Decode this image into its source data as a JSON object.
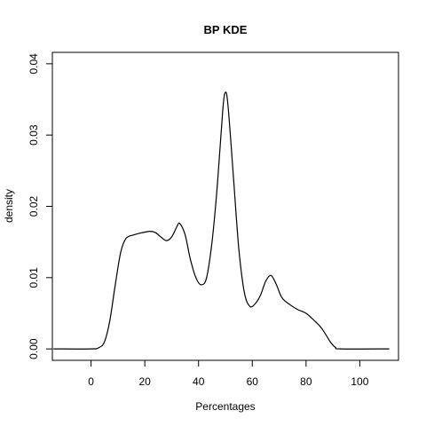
{
  "chart_data": {
    "type": "line",
    "title": "BP  KDE",
    "xlabel": "Percentages",
    "ylabel": "density",
    "xlim": [
      -14.4,
      114.4
    ],
    "ylim": [
      -0.0016,
      0.0416
    ],
    "xticks": [
      0,
      20,
      40,
      60,
      80,
      100
    ],
    "xtick_labels": [
      "0",
      "20",
      "40",
      "60",
      "80",
      "100"
    ],
    "yticks": [
      0.0,
      0.01,
      0.02,
      0.03,
      0.04
    ],
    "ytick_labels": [
      "0.00",
      "0.01",
      "0.02",
      "0.03",
      "0.04"
    ],
    "grid": false,
    "legend": "none",
    "series": [
      {
        "color": "#000000",
        "points": [
          [
            -14,
            0.0
          ],
          [
            0,
            0.0
          ],
          [
            3,
            0.0002
          ],
          [
            5,
            0.001
          ],
          [
            7,
            0.004
          ],
          [
            9,
            0.009
          ],
          [
            11,
            0.0135
          ],
          [
            13,
            0.0155
          ],
          [
            16,
            0.016
          ],
          [
            19,
            0.0163
          ],
          [
            22,
            0.0165
          ],
          [
            24,
            0.0163
          ],
          [
            26,
            0.0157
          ],
          [
            28,
            0.0152
          ],
          [
            30,
            0.0157
          ],
          [
            32,
            0.0172
          ],
          [
            33,
            0.0176
          ],
          [
            35,
            0.016
          ],
          [
            37,
            0.0125
          ],
          [
            39,
            0.01
          ],
          [
            41,
            0.009
          ],
          [
            43,
            0.01
          ],
          [
            45,
            0.015
          ],
          [
            47,
            0.023
          ],
          [
            49,
            0.0335
          ],
          [
            50,
            0.036
          ],
          [
            51,
            0.034
          ],
          [
            53,
            0.024
          ],
          [
            55,
            0.014
          ],
          [
            57,
            0.008
          ],
          [
            59,
            0.006
          ],
          [
            61,
            0.0063
          ],
          [
            63,
            0.0075
          ],
          [
            65,
            0.0095
          ],
          [
            67,
            0.0103
          ],
          [
            69,
            0.009
          ],
          [
            71,
            0.0072
          ],
          [
            74,
            0.0062
          ],
          [
            77,
            0.0055
          ],
          [
            80,
            0.005
          ],
          [
            83,
            0.004
          ],
          [
            86,
            0.0028
          ],
          [
            89,
            0.001
          ],
          [
            91,
            0.0002
          ],
          [
            93,
            0.0
          ],
          [
            111,
            0.0
          ]
        ]
      }
    ]
  }
}
